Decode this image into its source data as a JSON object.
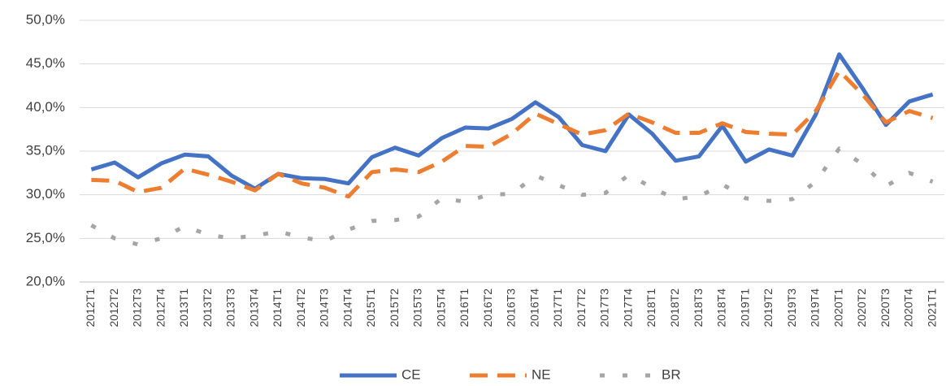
{
  "chart_data": {
    "type": "line",
    "categories": [
      "2012T1",
      "2012T2",
      "2012T3",
      "2012T4",
      "2013T1",
      "2013T2",
      "2013T3",
      "2013T4",
      "2014T1",
      "2014T2",
      "2014T3",
      "2014T4",
      "2015T1",
      "2015T2",
      "2015T3",
      "2015T4",
      "2016T1",
      "2016T2",
      "2016T3",
      "2016T4",
      "2017T1",
      "2017T2",
      "2017T3",
      "2017T4",
      "2018T1",
      "2018T2",
      "2018T3",
      "2018T4",
      "2019T1",
      "2019T2",
      "2019T3",
      "2019T4",
      "2020T1",
      "2020T2",
      "2020T3",
      "2020T4",
      "2021T1"
    ],
    "series": [
      {
        "name": "CE",
        "color": "#4472c4",
        "style": "solid",
        "values": [
          32.9,
          33.7,
          32.0,
          33.6,
          34.6,
          34.4,
          32.2,
          30.7,
          32.4,
          31.9,
          31.8,
          31.3,
          34.3,
          35.4,
          34.5,
          36.5,
          37.7,
          37.6,
          38.7,
          40.6,
          38.9,
          35.7,
          35.0,
          39.2,
          37.0,
          33.9,
          34.4,
          37.9,
          33.8,
          35.2,
          34.5,
          39.2,
          46.1,
          42.2,
          38.0,
          40.7,
          41.5
        ]
      },
      {
        "name": "NE",
        "color": "#ed7d31",
        "style": "dashed",
        "values": [
          31.7,
          31.6,
          30.3,
          30.8,
          33.0,
          32.3,
          31.5,
          30.5,
          32.4,
          31.3,
          30.8,
          29.8,
          32.6,
          32.9,
          32.6,
          33.8,
          35.6,
          35.5,
          37.0,
          39.3,
          38.1,
          36.9,
          37.4,
          39.3,
          38.3,
          37.1,
          37.1,
          38.2,
          37.2,
          37.0,
          36.9,
          39.6,
          44.2,
          41.5,
          38.3,
          39.6,
          38.8
        ]
      },
      {
        "name": "BR",
        "color": "#a5a5a5",
        "style": "dotted",
        "values": [
          26.5,
          25.0,
          24.3,
          25.0,
          26.4,
          25.4,
          25.0,
          25.3,
          25.8,
          25.1,
          24.7,
          26.0,
          27.0,
          27.1,
          27.5,
          29.6,
          29.2,
          30.0,
          30.1,
          32.2,
          31.1,
          30.0,
          30.2,
          32.3,
          30.8,
          29.5,
          29.8,
          31.2,
          29.6,
          29.3,
          29.5,
          31.5,
          35.3,
          33.5,
          31.0,
          32.5,
          31.5
        ]
      }
    ],
    "ylim": [
      20,
      50
    ],
    "yticks": [
      {
        "value": 20,
        "label": "20,0%"
      },
      {
        "value": 25,
        "label": "25,0%"
      },
      {
        "value": 30,
        "label": "30,0%"
      },
      {
        "value": 35,
        "label": "35,0%"
      },
      {
        "value": 40,
        "label": "40,0%"
      },
      {
        "value": 45,
        "label": "45,0%"
      },
      {
        "value": 50,
        "label": "50,0%"
      }
    ],
    "grid": true,
    "legend": "bottom"
  }
}
